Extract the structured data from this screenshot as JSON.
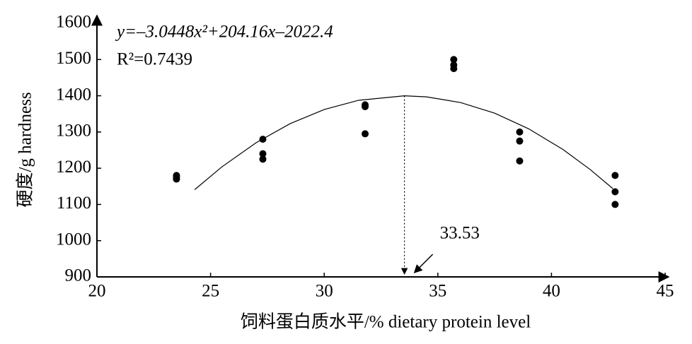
{
  "chart_data": {
    "type": "scatter",
    "equation": "y=–3.0448x²+204.16x–2022.4",
    "r_squared": "R²=0.7439",
    "annotation": 33.53,
    "x_label": "饲料蛋白质水平/% dietary protein level",
    "y_label": "硬度/g hardness",
    "xlim": [
      20,
      45
    ],
    "xticks": [
      20,
      25,
      30,
      35,
      40,
      45
    ],
    "ylim": [
      900,
      1600
    ],
    "yticks": [
      900,
      1000,
      1100,
      1200,
      1300,
      1400,
      1500,
      1600
    ],
    "color": "#000000",
    "x": [
      23.5,
      23.5,
      23.5,
      27.3,
      27.3,
      27.3,
      31.8,
      31.8,
      31.8,
      35.7,
      35.7,
      35.7,
      38.6,
      38.6,
      38.6,
      42.8,
      42.8,
      42.8
    ],
    "values": [
      1180,
      1175,
      1170,
      1280,
      1240,
      1225,
      1375,
      1370,
      1295,
      1500,
      1485,
      1475,
      1300,
      1275,
      1220,
      1180,
      1135,
      1100
    ],
    "fit": {
      "x": [
        24.3,
        25.5,
        27,
        28.5,
        30,
        31.5,
        33.53,
        34.5,
        36,
        37.5,
        39,
        40.5,
        41.7,
        42.7
      ],
      "values": [
        1140.8,
        1203.8,
        1270.3,
        1323.0,
        1362.1,
        1387.4,
        1399.9,
        1397.0,
        1381.3,
        1351.9,
        1308.7,
        1251.9,
        1196.5,
        1143.7
      ]
    }
  }
}
